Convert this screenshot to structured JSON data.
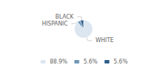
{
  "chart_data": {
    "type": "pie",
    "categories": [
      "WHITE",
      "HISPANIC",
      "BLACK"
    ],
    "values": [
      88.9,
      5.6,
      5.6
    ],
    "value_labels": [
      "88.9%",
      "5.6%",
      "5.6%"
    ],
    "colors": [
      "#dce6f0",
      "#7097b8",
      "#2f5f8a"
    ],
    "legend": "bottom"
  }
}
